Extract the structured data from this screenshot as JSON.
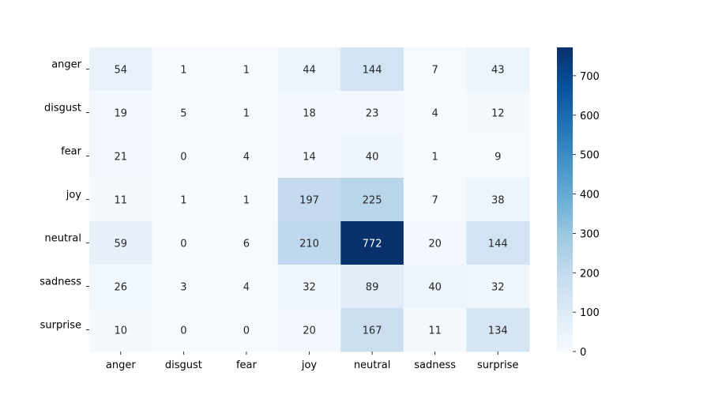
{
  "chart_data": {
    "type": "heatmap",
    "title": "",
    "xlabel": "",
    "ylabel": "",
    "x_categories": [
      "anger",
      "disgust",
      "fear",
      "joy",
      "neutral",
      "sadness",
      "surprise"
    ],
    "y_categories": [
      "anger",
      "disgust",
      "fear",
      "joy",
      "neutral",
      "sadness",
      "surprise"
    ],
    "values": [
      [
        54,
        1,
        1,
        44,
        144,
        7,
        43
      ],
      [
        19,
        5,
        1,
        18,
        23,
        4,
        12
      ],
      [
        21,
        0,
        4,
        14,
        40,
        1,
        9
      ],
      [
        11,
        1,
        1,
        197,
        225,
        7,
        38
      ],
      [
        59,
        0,
        6,
        210,
        772,
        20,
        144
      ],
      [
        26,
        3,
        4,
        32,
        89,
        40,
        32
      ],
      [
        10,
        0,
        0,
        20,
        167,
        11,
        134
      ]
    ],
    "colorbar": {
      "colormap": "Blues",
      "min": 0,
      "max": 772,
      "ticks": [
        0,
        100,
        200,
        300,
        400,
        500,
        600,
        700
      ]
    }
  }
}
